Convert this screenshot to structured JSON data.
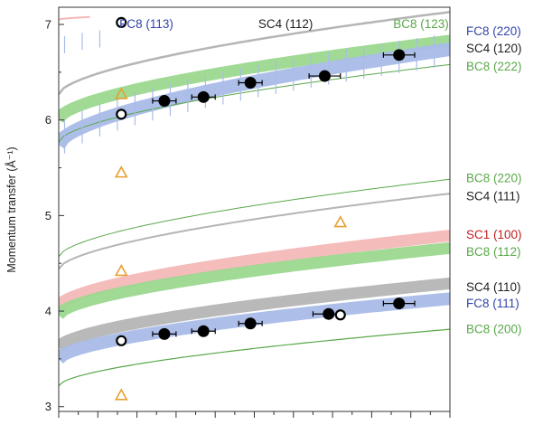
{
  "chart_data": {
    "type": "scatter",
    "title": "",
    "xlabel": "",
    "ylabel": "Momentum transfer (Å⁻¹)",
    "x_range": [
      0,
      10
    ],
    "ylim": [
      2.95,
      7.18
    ],
    "yticks": [
      3,
      4,
      5,
      6,
      7
    ],
    "xticks_count": 21,
    "colors": {
      "blue": "#3344aa",
      "black": "#222222",
      "green": "#5aa84a",
      "red": "#c02020",
      "blue_band": "#a9bce8",
      "green_band": "#9bd88f",
      "gray_band": "#b5b5b5",
      "pink_band": "#f4b8b8",
      "triangle": "#e6a030"
    },
    "band_labels": [
      {
        "label": "FC8 (220)",
        "color": "blue",
        "y": 6.93
      },
      {
        "label": "SC4 (120)",
        "color": "black",
        "y": 6.75
      },
      {
        "label": "BC8 (222)",
        "color": "green",
        "y": 6.56
      },
      {
        "label": "BC8 (220)",
        "color": "green",
        "y": 5.39
      },
      {
        "label": "SC4 (111)",
        "color": "black",
        "y": 5.2
      },
      {
        "label": "SC1 (100)",
        "color": "red",
        "y": 4.8
      },
      {
        "label": "BC8 (112)",
        "color": "green",
        "y": 4.62
      },
      {
        "label": "SC4 (110)",
        "color": "black",
        "y": 4.25
      },
      {
        "label": "FC8 (111)",
        "color": "blue",
        "y": 4.08
      },
      {
        "label": "BC8 (200)",
        "color": "green",
        "y": 3.81
      }
    ],
    "top_labels": [
      {
        "label": "FC8 (113)",
        "color": "blue",
        "x": 1.55
      },
      {
        "label": "SC4 (112)",
        "color": "black",
        "x": 5.1
      },
      {
        "label": "BC8 (123)",
        "color": "green",
        "x": 8.55
      }
    ],
    "series": [
      {
        "marker": "filled-circle",
        "x": [
          2.7,
          3.7,
          4.9,
          6.8,
          8.7
        ],
        "y": [
          6.2,
          6.24,
          6.39,
          6.46,
          6.68
        ],
        "xerr": [
          0.3,
          0.3,
          0.3,
          0.4,
          0.4
        ]
      },
      {
        "marker": "filled-circle",
        "x": [
          2.7,
          3.7,
          4.9,
          6.9,
          8.7
        ],
        "y": [
          3.76,
          3.79,
          3.87,
          3.97,
          4.08
        ],
        "xerr": [
          0.3,
          0.3,
          0.3,
          0.4,
          0.4
        ]
      },
      {
        "marker": "open-circle",
        "x": [
          1.6,
          1.6,
          1.6,
          7.2
        ],
        "y": [
          7.02,
          6.06,
          3.69,
          3.96
        ]
      },
      {
        "marker": "triangle",
        "x": [
          1.6,
          1.6,
          1.6,
          7.2,
          1.6
        ],
        "y": [
          6.27,
          5.45,
          4.42,
          4.93,
          3.12
        ]
      }
    ],
    "curves": [
      {
        "kind": "band",
        "color": "green_band",
        "a": 6.01,
        "b": 6.83,
        "width": 13
      },
      {
        "kind": "band",
        "color": "blue_band",
        "a": 5.74,
        "b": 6.74,
        "width": 15
      },
      {
        "kind": "band",
        "color": "pink_band",
        "a": 4.05,
        "b": 4.79,
        "width": 13
      },
      {
        "kind": "band",
        "color": "green_band",
        "a": 3.96,
        "b": 4.66,
        "width": 13
      },
      {
        "kind": "band",
        "color": "gray_band",
        "a": 3.62,
        "b": 4.29,
        "width": 13
      },
      {
        "kind": "band",
        "color": "blue_band",
        "a": 3.5,
        "b": 4.13,
        "width": 14
      },
      {
        "kind": "line",
        "color": "gray_band",
        "a": 6.27,
        "b": 7.13,
        "width": 2.5
      },
      {
        "kind": "line",
        "color": "green",
        "a": 5.77,
        "b": 6.58,
        "width": 1
      },
      {
        "kind": "line",
        "color": "green",
        "a": 4.57,
        "b": 5.38,
        "width": 1
      },
      {
        "kind": "line",
        "color": "gray_band",
        "a": 4.44,
        "b": 5.23,
        "width": 2
      },
      {
        "kind": "line",
        "color": "green",
        "a": 3.22,
        "b": 3.81,
        "width": 1.2
      },
      {
        "kind": "line",
        "color": "pink_band",
        "a": 7.05,
        "b": 7.18,
        "width": 2,
        "x_end": 0.8
      },
      {
        "kind": "hatch",
        "color": "blue_band",
        "a": 5.74,
        "b": 6.74,
        "amp": 0.17
      },
      {
        "kind": "hatch",
        "color": "blue_band",
        "a": 6.76,
        "b": 7.1,
        "amp": 0.09,
        "x_end": 1.45
      }
    ]
  }
}
